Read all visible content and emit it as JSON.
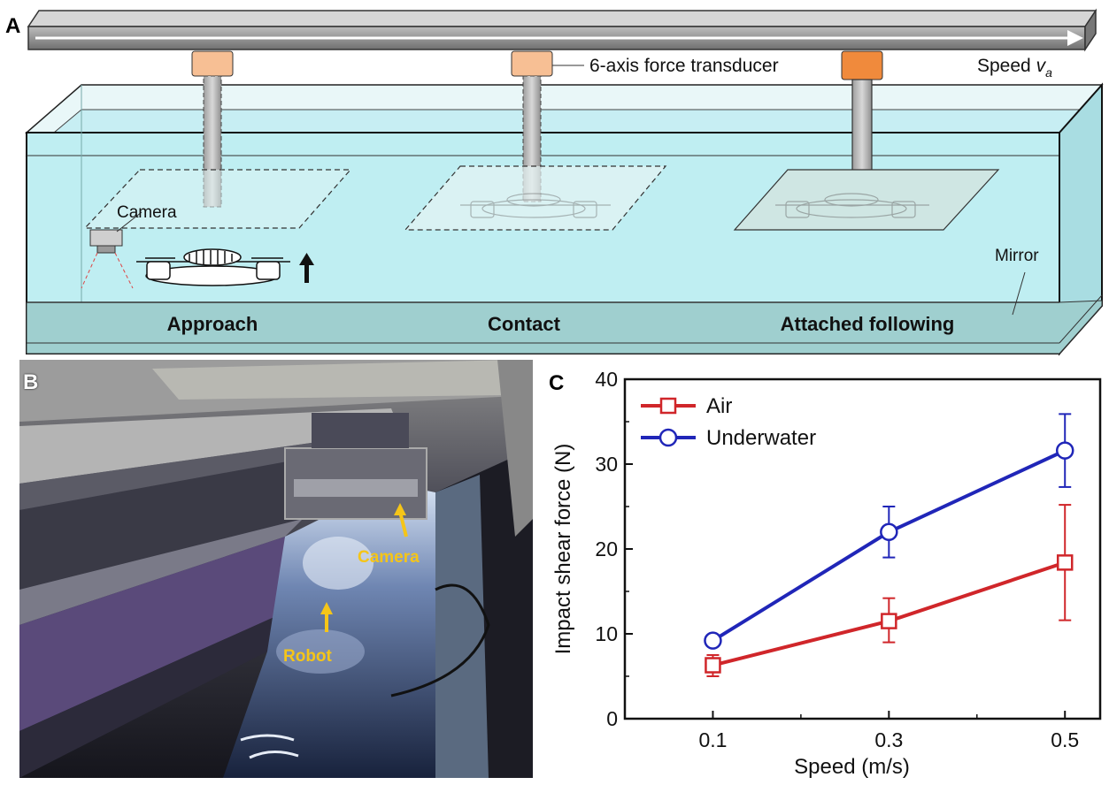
{
  "panels": {
    "a": {
      "label": "A",
      "transducer_label": "6-axis force transducer",
      "speed_label": "Speed ",
      "speed_symbol": "v",
      "speed_subscript": "a",
      "camera_label": "Camera",
      "mirror_label": "Mirror",
      "stages": [
        "Approach",
        "Contact",
        "Attached following"
      ]
    },
    "b": {
      "label": "B",
      "camera_label": "Camera",
      "robot_label": "Robot",
      "annotation_color": "#f5c518"
    },
    "c": {
      "label": "C"
    }
  },
  "chart_data": {
    "type": "line",
    "x": [
      0.1,
      0.3,
      0.5
    ],
    "xlabel": "Speed (m/s)",
    "ylabel": "Impact shear force (N)",
    "xticks": [
      "0.1",
      "0.3",
      "0.5"
    ],
    "yticks": [
      "0",
      "10",
      "20",
      "30",
      "40"
    ],
    "xlim": [
      0.0,
      0.54
    ],
    "ylim": [
      0,
      40
    ],
    "legend_position": "top-left",
    "series": [
      {
        "name": "Air",
        "marker": "square",
        "color": "#d0262a",
        "values": [
          6.3,
          11.5,
          18.4
        ],
        "error": [
          [
            5.0,
            7.5
          ],
          [
            9.0,
            14.2
          ],
          [
            11.6,
            25.2
          ]
        ]
      },
      {
        "name": "Underwater",
        "marker": "circle",
        "color": "#2026b8",
        "values": [
          9.2,
          22.0,
          31.6
        ],
        "error": [
          [
            9.2,
            9.2
          ],
          [
            19.0,
            25.0
          ],
          [
            27.3,
            35.9
          ]
        ]
      }
    ]
  }
}
